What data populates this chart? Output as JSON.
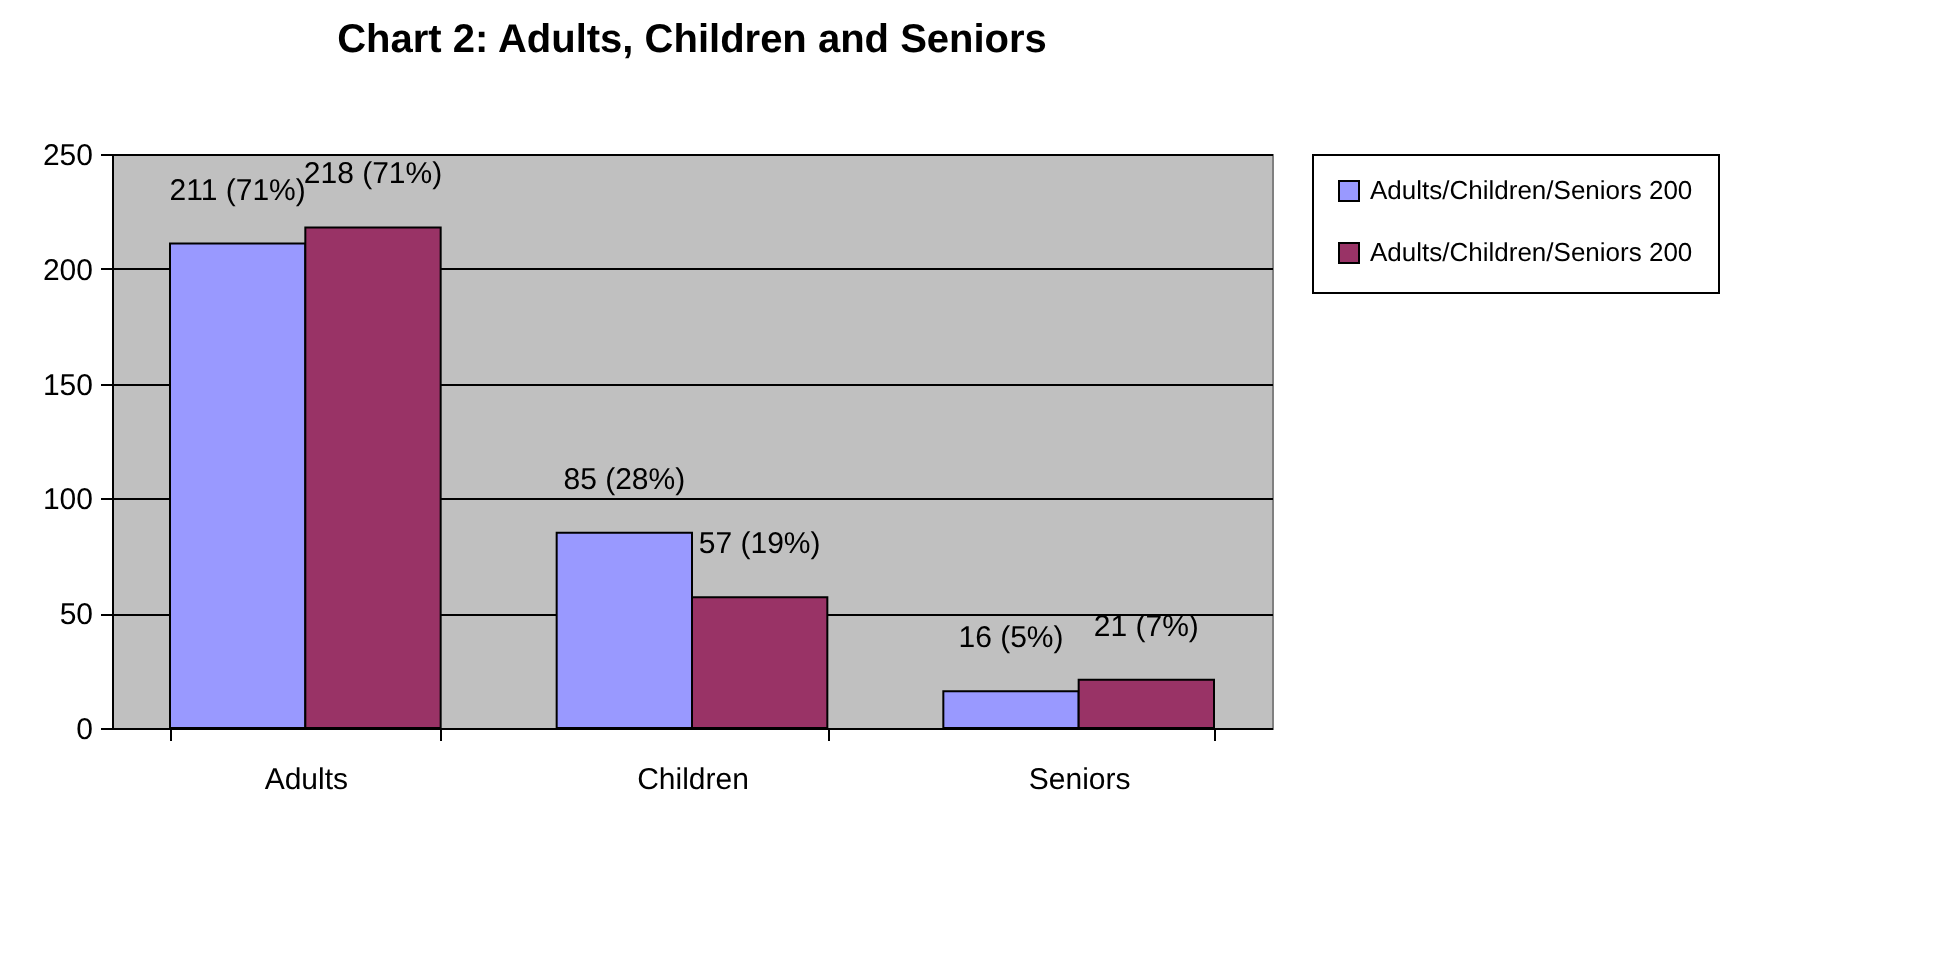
{
  "chart_data": {
    "type": "bar",
    "title": "Chart 2: Adults, Children and Seniors",
    "categories": [
      "Adults",
      "Children",
      "Seniors"
    ],
    "series": [
      {
        "name": "Adults/Children/Seniors 200",
        "color": "#9999ff",
        "values": [
          211,
          85,
          16
        ],
        "value_labels": [
          "211 (71%)",
          "85 (28%)",
          "16 (5%)"
        ]
      },
      {
        "name": "Adults/Children/Seniors 200",
        "color": "#993366",
        "values": [
          218,
          57,
          21
        ],
        "value_labels": [
          "218 (71%)",
          "57 (19%)",
          "21 (7%)"
        ]
      }
    ],
    "ylim": [
      0,
      250
    ],
    "yticks": [
      0,
      50,
      100,
      150,
      200,
      250
    ],
    "grid": "y",
    "legend": "right"
  }
}
